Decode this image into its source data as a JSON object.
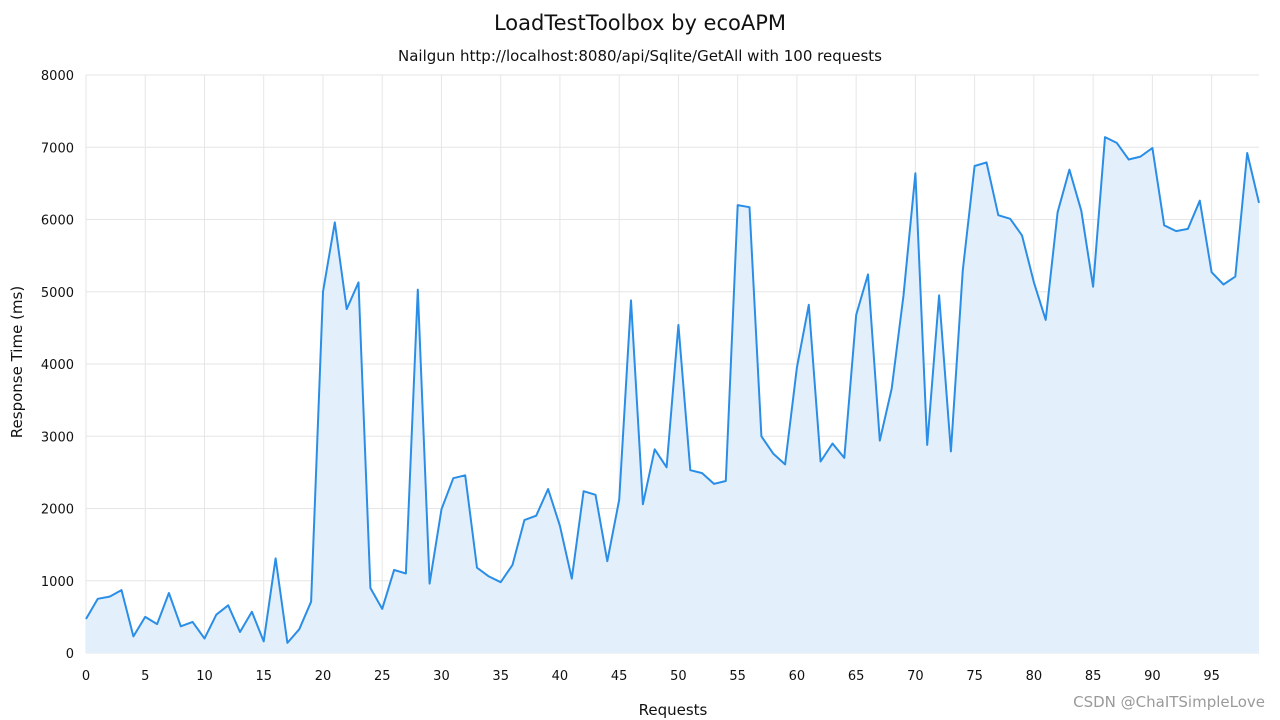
{
  "chart_data": {
    "type": "area",
    "title": "LoadTestToolbox by ecoAPM",
    "subtitle": "Nailgun http://localhost:8080/api/Sqlite/GetAll with 100 requests",
    "xlabel": "Requests",
    "ylabel": "Response Time (ms)",
    "xlim": [
      0,
      99
    ],
    "ylim": [
      0,
      8000
    ],
    "x_ticks": [
      0,
      5,
      10,
      15,
      20,
      25,
      30,
      35,
      40,
      45,
      50,
      55,
      60,
      65,
      70,
      75,
      80,
      85,
      90,
      95
    ],
    "y_ticks": [
      0,
      1000,
      2000,
      3000,
      4000,
      5000,
      6000,
      7000,
      8000
    ],
    "grid": true,
    "line_color": "#2b8ee6",
    "fill_color": "#e3f0fc",
    "x": [
      0,
      1,
      2,
      3,
      4,
      5,
      6,
      7,
      8,
      9,
      10,
      11,
      12,
      13,
      14,
      15,
      16,
      17,
      18,
      19,
      20,
      21,
      22,
      23,
      24,
      25,
      26,
      27,
      28,
      29,
      30,
      31,
      32,
      33,
      34,
      35,
      36,
      37,
      38,
      39,
      40,
      41,
      42,
      43,
      44,
      45,
      46,
      47,
      48,
      49,
      50,
      51,
      52,
      53,
      54,
      55,
      56,
      57,
      58,
      59,
      60,
      61,
      62,
      63,
      64,
      65,
      66,
      67,
      68,
      69,
      70,
      71,
      72,
      73,
      74,
      75,
      76,
      77,
      78,
      79,
      80,
      81,
      82,
      83,
      84,
      85,
      86,
      87,
      88,
      89,
      90,
      91,
      92,
      93,
      94,
      95,
      96,
      97,
      98,
      99
    ],
    "values": [
      470,
      750,
      780,
      870,
      230,
      500,
      400,
      830,
      370,
      430,
      200,
      530,
      660,
      290,
      570,
      160,
      1310,
      140,
      330,
      710,
      5000,
      5960,
      4760,
      5130,
      900,
      610,
      1150,
      1100,
      5030,
      960,
      1990,
      2420,
      2460,
      1180,
      1060,
      980,
      1220,
      1840,
      1900,
      2270,
      1760,
      1030,
      2240,
      2190,
      1270,
      2120,
      4880,
      2060,
      2820,
      2570,
      4540,
      2530,
      2490,
      2340,
      2380,
      6200,
      6170,
      3000,
      2760,
      2610,
      3950,
      4820,
      2650,
      2900,
      2700,
      4680,
      5240,
      2940,
      3660,
      4950,
      6640,
      2880,
      4950,
      2790,
      5300,
      6740,
      6790,
      6060,
      6010,
      5780,
      5130,
      4610,
      6100,
      6690,
      6120,
      5070,
      7140,
      7060,
      6830,
      6870,
      6990,
      5920,
      5840,
      5870,
      6260,
      5270,
      5100,
      5210,
      6920,
      6230
    ]
  },
  "watermark": "CSDN @ChaITSimpleLove"
}
